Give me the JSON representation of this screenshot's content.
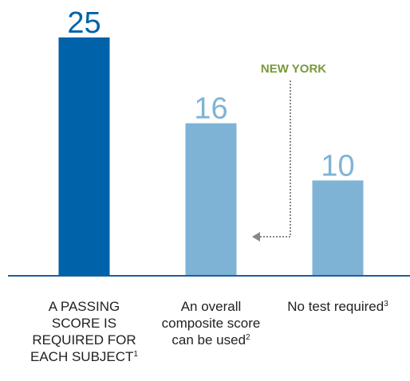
{
  "chart_data": {
    "type": "bar",
    "categories": [
      "A PASSING SCORE IS REQUIRED FOR EACH SUBJECT",
      "An overall composite score can be used",
      "No test required"
    ],
    "footnotes": [
      "1",
      "2",
      "3"
    ],
    "values": [
      25,
      16,
      10
    ],
    "colors": [
      "#0062a8",
      "#7fb3d6",
      "#7fb3d6"
    ],
    "ylim": [
      0,
      25
    ],
    "annotation": "NEW YORK"
  }
}
